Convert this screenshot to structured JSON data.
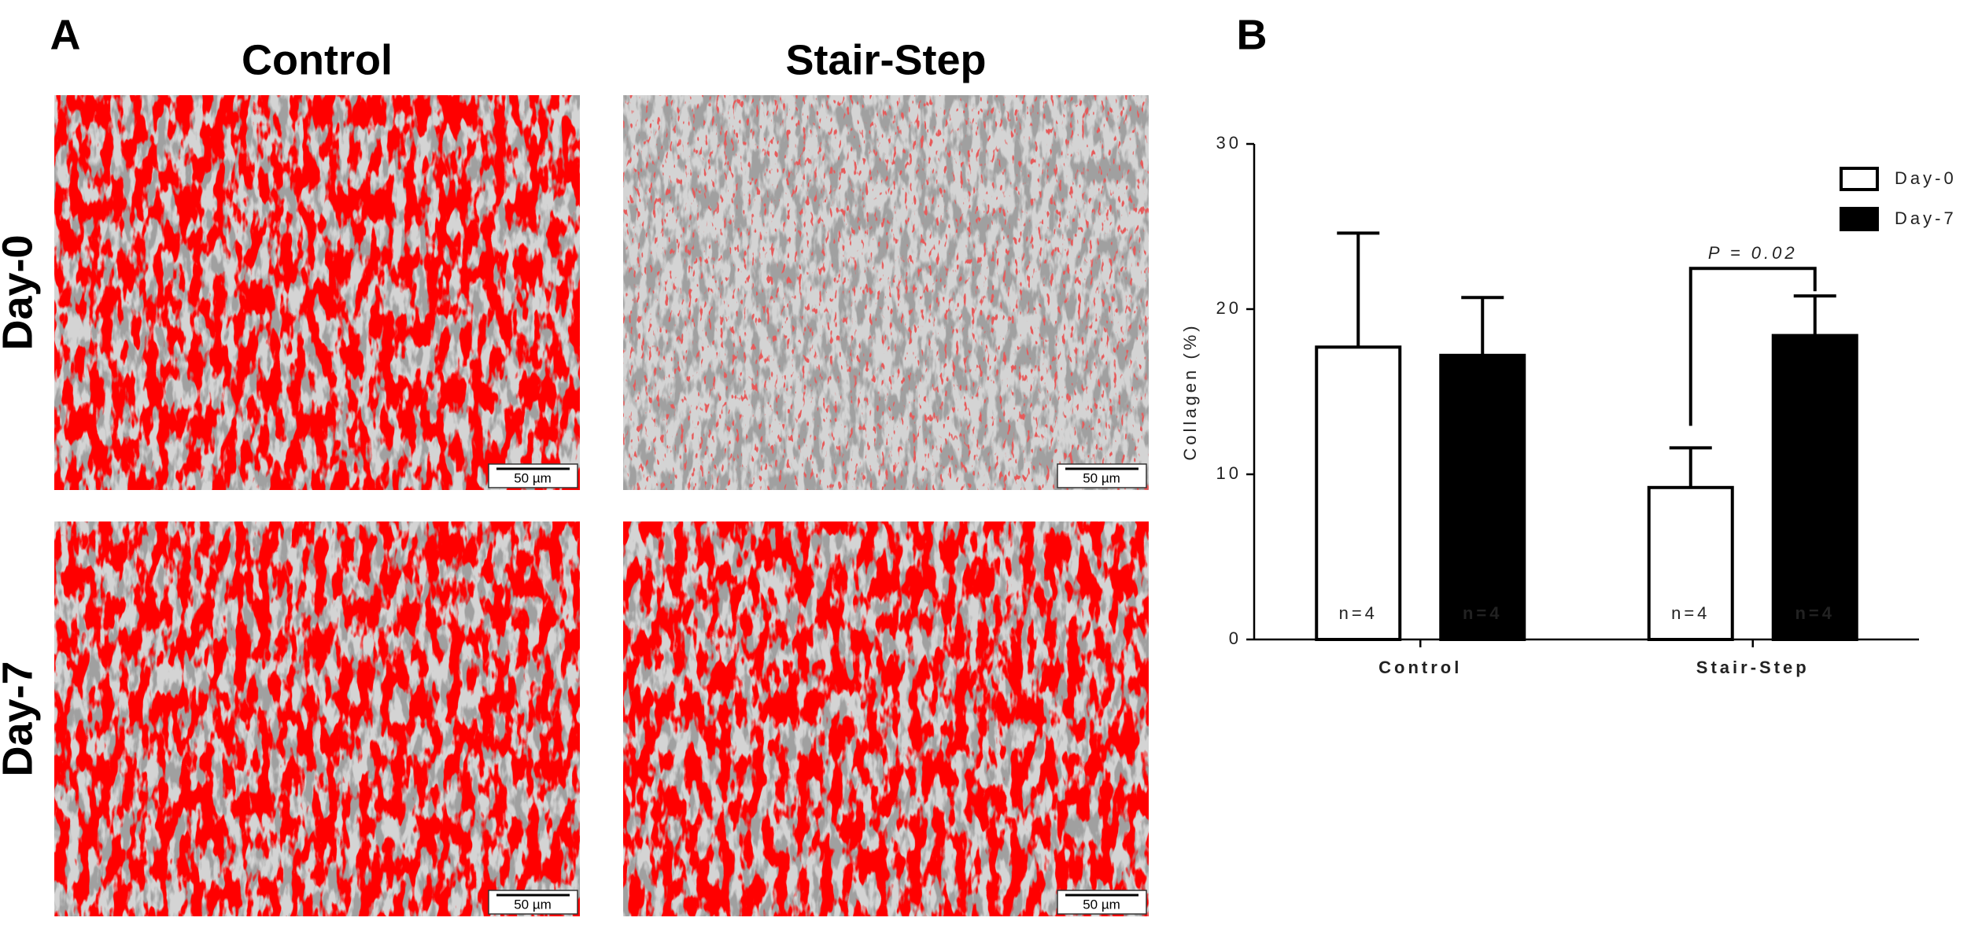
{
  "panel_a": {
    "label": "A",
    "columns": [
      "Control",
      "Stair-Step"
    ],
    "rows": [
      "Day-0",
      "Day-7"
    ],
    "scale_bar": "50 µm"
  },
  "chart_data": {
    "type": "bar",
    "panel_label": "B",
    "categories": [
      "Control",
      "Stair-Step"
    ],
    "series": [
      {
        "name": "Day-0",
        "color": "#ffffff",
        "values": [
          17.7,
          9.2
        ],
        "errors": [
          6.9,
          2.4
        ],
        "n_labels": [
          "n=4",
          "n=4"
        ]
      },
      {
        "name": "Day-7",
        "color": "#000000",
        "values": [
          17.2,
          18.4
        ],
        "errors": [
          3.5,
          2.4
        ],
        "n_labels": [
          "n=4",
          "n=4"
        ]
      }
    ],
    "edgecolor": "#000000",
    "ylabel": "Collagen (%)",
    "ylim": [
      0,
      30
    ],
    "yticks": [
      0,
      10,
      20,
      30
    ],
    "annotation": "P = 0.02",
    "legend": "upper right"
  }
}
